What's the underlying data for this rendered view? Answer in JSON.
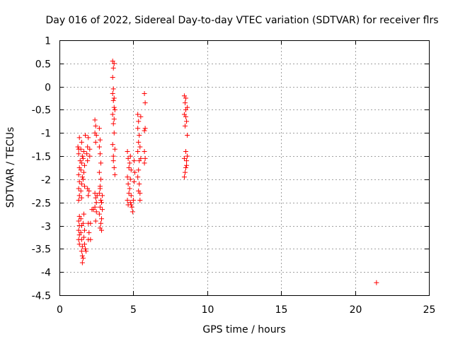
{
  "chart_data": {
    "type": "scatter",
    "title": "Day 016 of 2022, Sidereal Day-to-day VTEC variation (SDTVAR) for receiver flrs",
    "xlabel": "GPS time / hours",
    "ylabel": "SDTVAR / TECUs",
    "xlim": [
      0,
      25
    ],
    "ylim": [
      -4.5,
      1
    ],
    "x_ticks": [
      0,
      5,
      10,
      15,
      20,
      25
    ],
    "x_tick_labels": [
      "0",
      "5",
      "10",
      "15",
      "20",
      "25"
    ],
    "y_ticks": [
      1,
      0.5,
      0,
      -0.5,
      -1,
      -1.5,
      -2,
      -2.5,
      -3,
      -3.5,
      -4,
      -4.5
    ],
    "y_tick_labels": [
      "1",
      "0.5",
      "0",
      "-0.5",
      "-1",
      "-1.5",
      "-2",
      "-2.5",
      "-3",
      "-3.5",
      "-4",
      "-4.5"
    ],
    "grid": true,
    "marker": "+",
    "color": "#ff0000",
    "series": [
      {
        "name": "SDTVAR",
        "points": [
          [
            1.25,
            -1.3
          ],
          [
            1.3,
            -1.35
          ],
          [
            1.35,
            -1.1
          ],
          [
            1.3,
            -1.45
          ],
          [
            1.4,
            -1.6
          ],
          [
            1.35,
            -1.75
          ],
          [
            1.3,
            -1.9
          ],
          [
            1.35,
            -2.05
          ],
          [
            1.3,
            -2.2
          ],
          [
            1.35,
            -2.35
          ],
          [
            1.3,
            -2.45
          ],
          [
            1.5,
            -1.2
          ],
          [
            1.45,
            -1.35
          ],
          [
            1.55,
            -1.5
          ],
          [
            1.5,
            -1.65
          ],
          [
            1.45,
            -1.8
          ],
          [
            1.55,
            -1.95
          ],
          [
            1.5,
            -2.1
          ],
          [
            1.45,
            -2.25
          ],
          [
            1.5,
            -2.4
          ],
          [
            1.65,
            -1.4
          ],
          [
            1.6,
            -1.55
          ],
          [
            1.7,
            -1.7
          ],
          [
            1.65,
            -1.85
          ],
          [
            1.6,
            -2.0
          ],
          [
            1.7,
            -2.15
          ],
          [
            1.75,
            -1.05
          ],
          [
            1.35,
            -2.8
          ],
          [
            1.3,
            -2.9
          ],
          [
            1.35,
            -3.0
          ],
          [
            1.3,
            -3.1
          ],
          [
            1.35,
            -3.2
          ],
          [
            1.3,
            -3.3
          ],
          [
            1.35,
            -3.4
          ],
          [
            1.45,
            -2.85
          ],
          [
            1.5,
            -3.0
          ],
          [
            1.45,
            -3.15
          ],
          [
            1.5,
            -3.3
          ],
          [
            1.55,
            -3.45
          ],
          [
            1.5,
            -3.55
          ],
          [
            1.55,
            -3.65
          ],
          [
            1.6,
            -3.7
          ],
          [
            1.55,
            -3.8
          ],
          [
            1.65,
            -2.75
          ],
          [
            1.6,
            -2.95
          ],
          [
            1.7,
            -3.1
          ],
          [
            1.65,
            -3.25
          ],
          [
            1.7,
            -3.4
          ],
          [
            1.75,
            -3.5
          ],
          [
            1.8,
            -3.55
          ],
          [
            1.9,
            -1.3
          ],
          [
            1.85,
            -1.45
          ],
          [
            1.9,
            -1.6
          ],
          [
            1.95,
            -1.1
          ],
          [
            1.9,
            -2.2
          ],
          [
            1.95,
            -2.35
          ],
          [
            2.0,
            -2.25
          ],
          [
            2.05,
            -1.35
          ],
          [
            2.05,
            -1.5
          ],
          [
            1.95,
            -2.95
          ],
          [
            2.0,
            -3.15
          ],
          [
            1.95,
            -3.3
          ],
          [
            2.1,
            -2.95
          ],
          [
            2.1,
            -3.3
          ],
          [
            2.2,
            -2.65
          ],
          [
            2.3,
            -2.65
          ],
          [
            2.4,
            -0.72
          ],
          [
            2.45,
            -0.85
          ],
          [
            2.4,
            -1.0
          ],
          [
            2.5,
            -1.05
          ],
          [
            2.45,
            -1.2
          ],
          [
            2.4,
            -2.3
          ],
          [
            2.45,
            -2.4
          ],
          [
            2.5,
            -2.5
          ],
          [
            2.4,
            -2.6
          ],
          [
            2.5,
            -2.7
          ],
          [
            2.45,
            -2.9
          ],
          [
            2.55,
            -2.35
          ],
          [
            2.7,
            -0.9
          ],
          [
            2.75,
            -1.15
          ],
          [
            2.7,
            -1.3
          ],
          [
            2.75,
            -1.45
          ],
          [
            2.8,
            -1.65
          ],
          [
            2.7,
            -1.85
          ],
          [
            2.8,
            -2.0
          ],
          [
            2.75,
            -2.15
          ],
          [
            2.7,
            -2.3
          ],
          [
            2.8,
            -2.45
          ],
          [
            2.75,
            -2.6
          ],
          [
            2.7,
            -2.75
          ],
          [
            2.8,
            -2.95
          ],
          [
            2.75,
            -3.05
          ],
          [
            2.85,
            -3.1
          ],
          [
            2.75,
            -2.2
          ],
          [
            2.9,
            -2.35
          ],
          [
            2.85,
            -2.5
          ],
          [
            2.9,
            -2.65
          ],
          [
            2.85,
            -2.85
          ],
          [
            3.6,
            0.55
          ],
          [
            3.65,
            0.4
          ],
          [
            3.6,
            0.2
          ],
          [
            3.7,
            0.5
          ],
          [
            3.6,
            -0.15
          ],
          [
            3.65,
            -0.3
          ],
          [
            3.7,
            -0.45
          ],
          [
            3.6,
            -0.6
          ],
          [
            3.65,
            -0.8
          ],
          [
            3.7,
            -1.0
          ],
          [
            3.6,
            -1.25
          ],
          [
            3.65,
            -1.5
          ],
          [
            3.7,
            -1.75
          ],
          [
            3.75,
            -1.9
          ],
          [
            3.65,
            -0.05
          ],
          [
            3.7,
            -0.25
          ],
          [
            3.75,
            -0.5
          ],
          [
            3.7,
            -0.7
          ],
          [
            3.75,
            -1.35
          ],
          [
            3.65,
            -1.6
          ],
          [
            4.6,
            -1.4
          ],
          [
            4.65,
            -1.55
          ],
          [
            4.7,
            -1.75
          ],
          [
            4.6,
            -1.95
          ],
          [
            4.65,
            -2.1
          ],
          [
            4.7,
            -2.3
          ],
          [
            4.6,
            -2.45
          ],
          [
            4.65,
            -2.55
          ],
          [
            4.8,
            -1.5
          ],
          [
            4.75,
            -1.65
          ],
          [
            4.85,
            -1.8
          ],
          [
            4.8,
            -2.0
          ],
          [
            4.75,
            -2.2
          ],
          [
            4.85,
            -2.35
          ],
          [
            4.8,
            -2.5
          ],
          [
            4.9,
            -2.6
          ],
          [
            4.95,
            -2.7
          ],
          [
            4.85,
            -2.55
          ],
          [
            5.0,
            -2.45
          ],
          [
            5.05,
            -1.6
          ],
          [
            5.1,
            -1.85
          ],
          [
            5.05,
            -2.05
          ],
          [
            5.3,
            -0.6
          ],
          [
            5.35,
            -0.75
          ],
          [
            5.3,
            -0.9
          ],
          [
            5.4,
            -1.05
          ],
          [
            5.35,
            -1.2
          ],
          [
            5.3,
            -1.4
          ],
          [
            5.4,
            -1.6
          ],
          [
            5.35,
            -1.8
          ],
          [
            5.3,
            -1.95
          ],
          [
            5.4,
            -2.1
          ],
          [
            5.35,
            -2.25
          ],
          [
            5.45,
            -2.45
          ],
          [
            5.5,
            -0.65
          ],
          [
            5.45,
            -1.3
          ],
          [
            5.5,
            -1.55
          ],
          [
            5.45,
            -2.3
          ],
          [
            5.75,
            -0.15
          ],
          [
            5.8,
            -0.35
          ],
          [
            5.75,
            -0.95
          ],
          [
            5.8,
            -0.9
          ],
          [
            5.75,
            -1.4
          ],
          [
            5.8,
            -1.55
          ],
          [
            5.75,
            -1.65
          ],
          [
            8.45,
            -0.2
          ],
          [
            8.5,
            -0.35
          ],
          [
            8.55,
            -0.5
          ],
          [
            8.45,
            -0.6
          ],
          [
            8.6,
            -0.75
          ],
          [
            8.5,
            -0.85
          ],
          [
            8.55,
            -1.4
          ],
          [
            8.45,
            -1.55
          ],
          [
            8.6,
            -1.7
          ],
          [
            8.5,
            -1.85
          ],
          [
            8.45,
            -1.95
          ],
          [
            8.65,
            -1.05
          ],
          [
            8.55,
            -0.25
          ],
          [
            8.65,
            -0.45
          ],
          [
            8.55,
            -0.65
          ],
          [
            8.65,
            -1.5
          ],
          [
            8.6,
            -1.6
          ],
          [
            8.55,
            -1.75
          ],
          [
            21.45,
            -4.23
          ]
        ]
      }
    ]
  }
}
